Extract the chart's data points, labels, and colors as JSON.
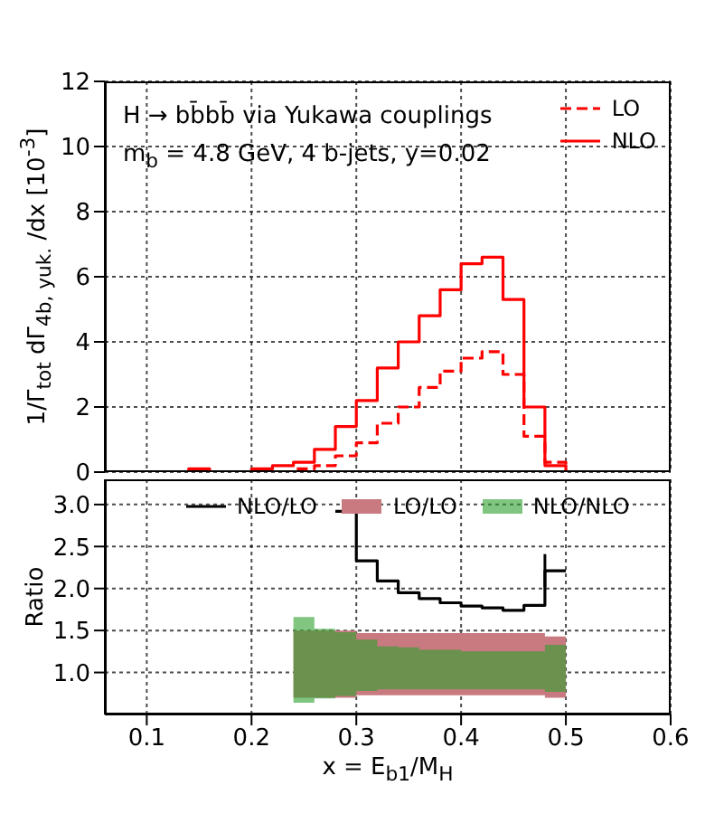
{
  "chart_data": [
    {
      "type": "histogram",
      "title": "H → bb̄bb̄ via Yukawa couplings",
      "subtitle": "m$_{b}$ = 4.8 GeV,  4 b-jets, y=0.02",
      "ylabel": "1/Γ$_{tot}$ dΓ$_{4b, yuk.}$ /dx [10$^{-3}$]",
      "bins": [
        0.06,
        0.08,
        0.1,
        0.12,
        0.14,
        0.16,
        0.18,
        0.2,
        0.22,
        0.24,
        0.26,
        0.28,
        0.3,
        0.32,
        0.34,
        0.36,
        0.38,
        0.4,
        0.42,
        0.44,
        0.46,
        0.48,
        0.5,
        0.52,
        0.54,
        0.56,
        0.58,
        0.6
      ],
      "series": [
        {
          "name": "LO",
          "color": "#ff0000",
          "line_style": "dashed",
          "values": [
            0,
            0,
            0,
            0,
            0,
            0,
            0,
            0,
            0,
            0.1,
            0.2,
            0.5,
            0.9,
            1.5,
            2.0,
            2.6,
            3.1,
            3.5,
            3.7,
            3.0,
            1.1,
            0.3,
            0,
            0,
            0,
            0,
            0
          ]
        },
        {
          "name": "NLO",
          "color": "#ff0000",
          "line_style": "solid",
          "values": [
            0,
            0,
            0,
            0,
            0.1,
            0,
            0,
            0.1,
            0.2,
            0.3,
            0.7,
            1.4,
            2.2,
            3.2,
            4.0,
            4.8,
            5.6,
            6.4,
            6.6,
            5.3,
            2.0,
            0.2,
            0,
            0,
            0,
            0,
            0
          ]
        }
      ],
      "xlim": [
        0.06,
        0.6
      ],
      "xticks": [
        0.1,
        0.2,
        0.3,
        0.4,
        0.5,
        0.6
      ],
      "ylim": [
        0,
        12
      ],
      "yticks": [
        0,
        2,
        4,
        6,
        8,
        10,
        12
      ],
      "tick_labels": "y",
      "grid": true,
      "legend": "top right"
    },
    {
      "type": "step",
      "xlabel": "x = E$_{b1}$/M$_{H}$",
      "ylabel": "Ratio",
      "x": [
        0.24,
        0.26,
        0.28,
        0.3,
        0.32,
        0.34,
        0.36,
        0.38,
        0.4,
        0.42,
        0.44,
        0.46,
        0.48,
        0.5
      ],
      "series": [
        {
          "name": "NLO/LO",
          "color": "#000000",
          "values": [
            null,
            null,
            2.92,
            2.33,
            2.09,
            1.95,
            1.88,
            1.83,
            1.79,
            1.77,
            1.74,
            1.8,
            2.21,
            2.21
          ],
          "errors": [
            null,
            null,
            null,
            null,
            null,
            null,
            null,
            null,
            null,
            null,
            null,
            null,
            [
              2.02,
              2.41
            ],
            null
          ]
        },
        {
          "name": "LO/LO",
          "type": "area",
          "color": "#c87a80",
          "values": [
            null,
            null,
            null,
            null,
            null,
            null,
            null,
            null,
            null,
            null,
            null,
            null,
            null,
            null
          ],
          "lower": [
            0.7,
            0.7,
            0.7,
            0.73,
            0.73,
            0.73,
            0.73,
            0.73,
            0.73,
            0.73,
            0.73,
            0.73,
            0.7,
            0.7
          ],
          "upper": [
            1.5,
            1.5,
            1.5,
            1.47,
            1.47,
            1.47,
            1.47,
            1.47,
            1.47,
            1.47,
            1.47,
            1.47,
            1.43,
            1.43
          ]
        },
        {
          "name": "NLO/NLO",
          "type": "area",
          "color": "#2ca02c",
          "values": [
            null,
            null,
            null,
            null,
            null,
            null,
            null,
            null,
            null,
            null,
            null,
            null,
            null,
            null
          ],
          "lower": [
            0.64,
            0.69,
            0.72,
            0.78,
            0.8,
            0.8,
            0.8,
            0.8,
            0.8,
            0.8,
            0.8,
            0.8,
            0.77,
            0.77
          ],
          "upper": [
            1.66,
            1.52,
            1.48,
            1.39,
            1.31,
            1.3,
            1.27,
            1.27,
            1.25,
            1.25,
            1.25,
            1.25,
            1.33,
            1.33
          ]
        }
      ],
      "xlim": [
        0.06,
        0.6
      ],
      "xticks": [
        0.1,
        0.2,
        0.3,
        0.4,
        0.5,
        0.6
      ],
      "ylim": [
        0.5,
        3.3
      ],
      "yticks": [
        {
          "value": 1,
          "label": "1.0"
        },
        {
          "value": 1.5,
          "label": "1.5"
        },
        {
          "value": 2,
          "label": "2.0"
        },
        {
          "value": 2.5,
          "label": "2.5"
        },
        {
          "value": 3,
          "label": "3.0"
        }
      ],
      "grid": true,
      "legend": "top"
    }
  ]
}
